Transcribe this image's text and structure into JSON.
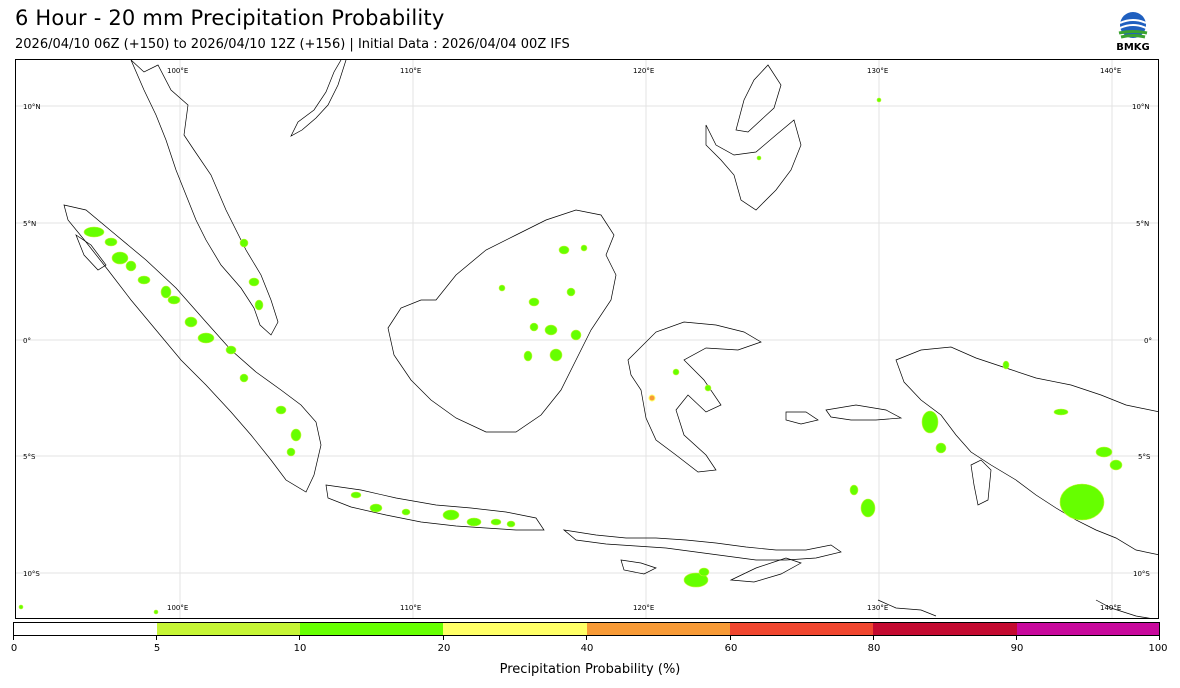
{
  "header": {
    "title": "6 Hour - 20 mm Precipitation Probability",
    "subtitle": "2026/04/10 06Z (+150) to 2026/04/10 12Z (+156) | Initial Data : 2026/04/04 00Z IFS",
    "logo_text": "BMKG"
  },
  "map": {
    "lon_labels": [
      "100°E",
      "110°E",
      "120°E",
      "130°E",
      "140°E"
    ],
    "lat_labels": [
      "10°N",
      "5°N",
      "0°",
      "5°S",
      "10°S"
    ],
    "colors": {
      "land_outline": "#000000",
      "grid": "#dddddd",
      "precip_5_10": "#c6f535",
      "precip_10_20": "#66ff00",
      "precip_20_40": "#ffff66",
      "precip_40_60": "#f79a36"
    }
  },
  "colorbar": {
    "title": "Precipitation Probability (%)",
    "tick_labels": [
      "0",
      "5",
      "10",
      "20",
      "40",
      "60",
      "80",
      "90",
      "100"
    ],
    "colors": [
      "#ffffff",
      "#c6f535",
      "#66ff00",
      "#ffff66",
      "#f79a36",
      "#f0462f",
      "#c40a30",
      "#c8089c"
    ]
  }
}
